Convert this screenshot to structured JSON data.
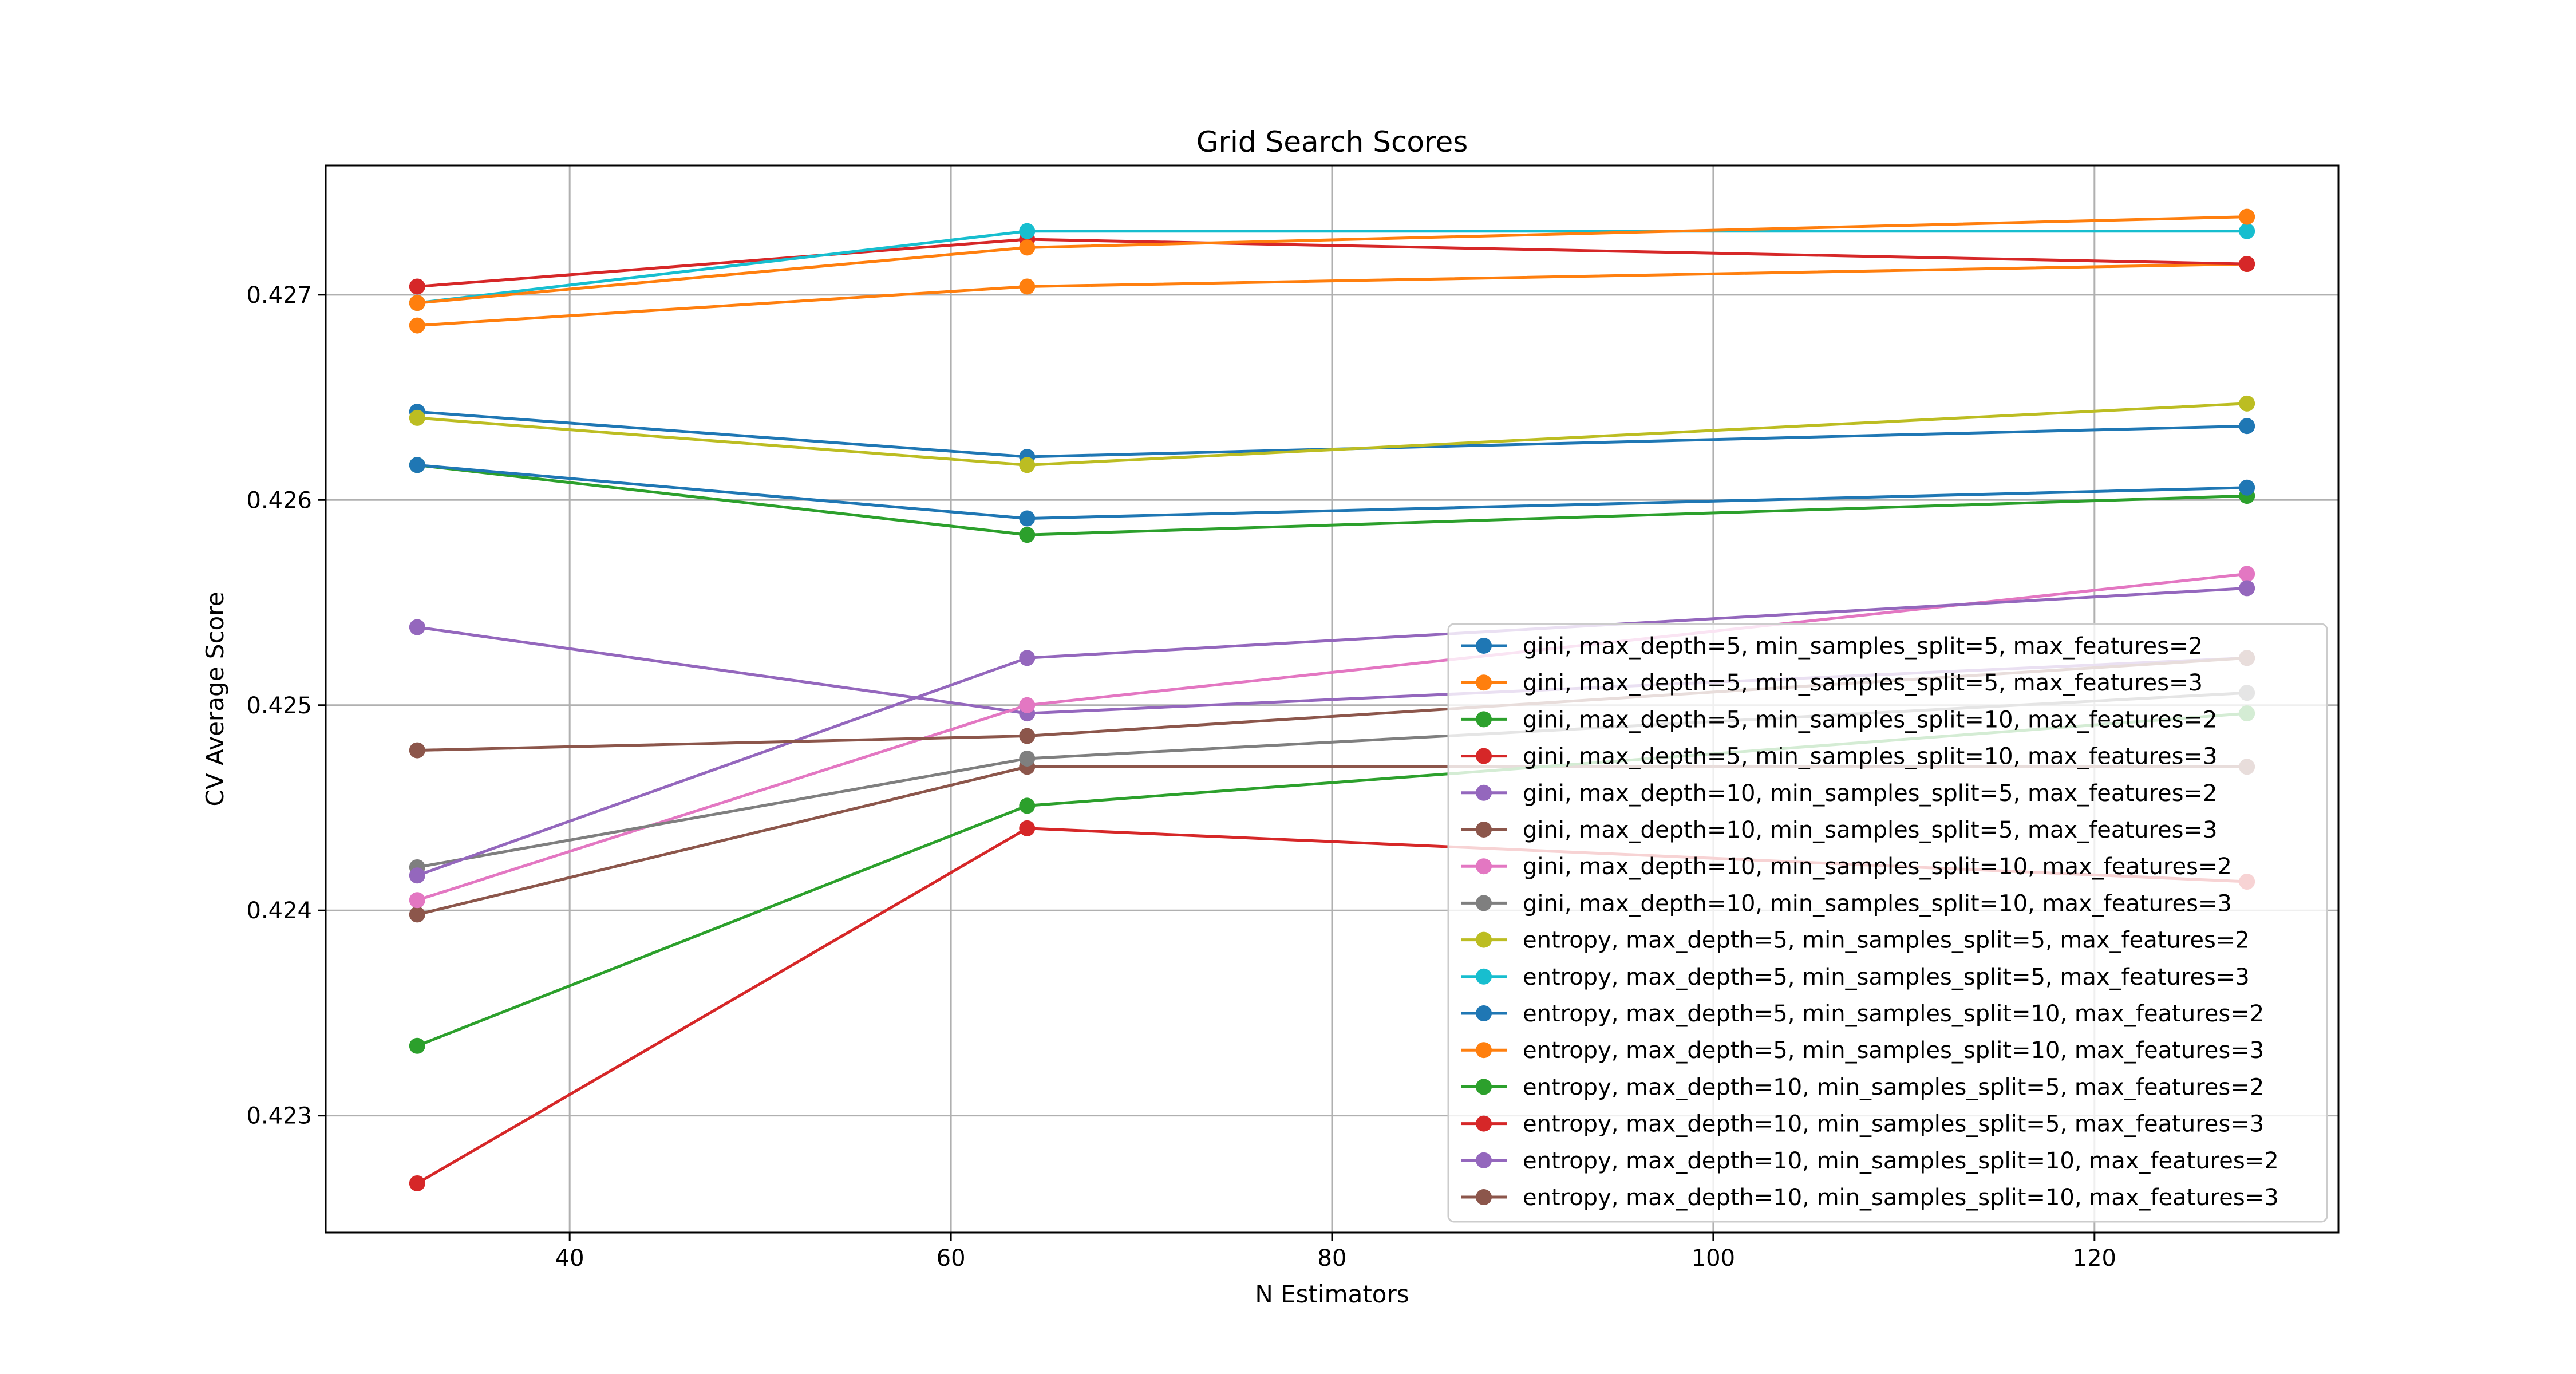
{
  "chart_data": {
    "type": "line",
    "title": "Grid Search Scores",
    "xlabel": "N Estimators",
    "ylabel": "CV Average Score",
    "x": [
      32,
      64,
      128
    ],
    "xlim": [
      27.2,
      132.8
    ],
    "ylim": [
      0.42243,
      0.42763
    ],
    "xticks": [
      40,
      60,
      80,
      100,
      120
    ],
    "yticks": [
      0.423,
      0.424,
      0.425,
      0.426,
      0.427
    ],
    "xtick_labels": [
      "40",
      "60",
      "80",
      "100",
      "120"
    ],
    "ytick_labels": [
      "0.423",
      "0.424",
      "0.425",
      "0.426",
      "0.427"
    ],
    "grid": true,
    "legend_position": "lower-right",
    "series": [
      {
        "name": "gini, max_depth=5, min_samples_split=5, max_features=2",
        "color": "#1f77b4",
        "values": [
          0.42643,
          0.42621,
          0.42636
        ]
      },
      {
        "name": "gini, max_depth=5, min_samples_split=5, max_features=3",
        "color": "#ff7f0e",
        "values": [
          0.42685,
          0.42704,
          0.42715
        ]
      },
      {
        "name": "gini, max_depth=5, min_samples_split=10, max_features=2",
        "color": "#2ca02c",
        "values": [
          0.42617,
          0.42583,
          0.42602
        ]
      },
      {
        "name": "gini, max_depth=5, min_samples_split=10, max_features=3",
        "color": "#d62728",
        "values": [
          0.42704,
          0.42727,
          0.42715
        ]
      },
      {
        "name": "gini, max_depth=10, min_samples_split=5, max_features=2",
        "color": "#9467bd",
        "values": [
          0.42538,
          0.42496,
          0.42523
        ]
      },
      {
        "name": "gini, max_depth=10, min_samples_split=5, max_features=3",
        "color": "#8c564b",
        "values": [
          0.42398,
          0.4247,
          0.4247
        ]
      },
      {
        "name": "gini, max_depth=10, min_samples_split=10, max_features=2",
        "color": "#e377c2",
        "values": [
          0.42405,
          0.425,
          0.42564
        ]
      },
      {
        "name": "gini, max_depth=10, min_samples_split=10, max_features=3",
        "color": "#7f7f7f",
        "values": [
          0.42421,
          0.42474,
          0.42506
        ]
      },
      {
        "name": "entropy, max_depth=5, min_samples_split=5, max_features=2",
        "color": "#bcbd22",
        "values": [
          0.4264,
          0.42617,
          0.42647
        ]
      },
      {
        "name": "entropy, max_depth=5, min_samples_split=5, max_features=3",
        "color": "#17becf",
        "values": [
          0.42696,
          0.42731,
          0.42731
        ]
      },
      {
        "name": "entropy, max_depth=5, min_samples_split=10, max_features=2",
        "color": "#1f77b4",
        "values": [
          0.42617,
          0.42591,
          0.42606
        ]
      },
      {
        "name": "entropy, max_depth=5, min_samples_split=10, max_features=3",
        "color": "#ff7f0e",
        "values": [
          0.42696,
          0.42723,
          0.42738
        ]
      },
      {
        "name": "entropy, max_depth=10, min_samples_split=5, max_features=2",
        "color": "#2ca02c",
        "values": [
          0.42334,
          0.42451,
          0.42496
        ]
      },
      {
        "name": "entropy, max_depth=10, min_samples_split=5, max_features=3",
        "color": "#d62728",
        "values": [
          0.42267,
          0.4244,
          0.42414
        ]
      },
      {
        "name": "entropy, max_depth=10, min_samples_split=10, max_features=2",
        "color": "#9467bd",
        "values": [
          0.42417,
          0.42523,
          0.42557
        ]
      },
      {
        "name": "entropy, max_depth=10, min_samples_split=10, max_features=3",
        "color": "#8c564b",
        "values": [
          0.42478,
          0.42485,
          0.42523
        ]
      }
    ]
  }
}
